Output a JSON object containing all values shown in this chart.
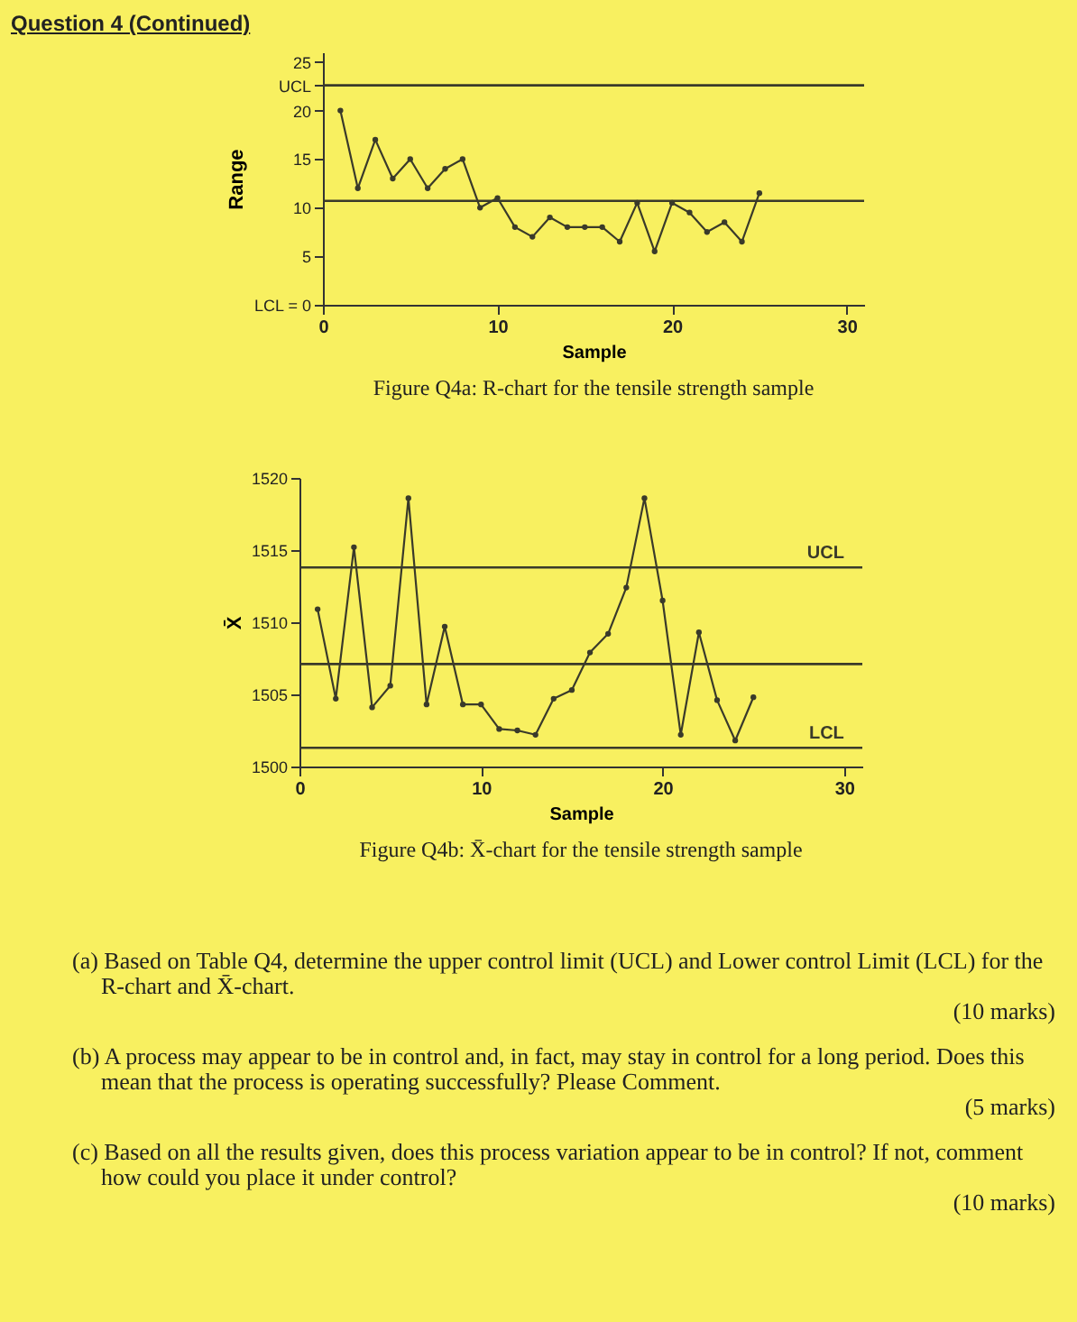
{
  "chart_data": [
    {
      "type": "other",
      "title": "Question 4 (Continued)"
    },
    {
      "type": "line",
      "title": "Figure Q4a: R-chart for the tensile strength sample",
      "xlabel": "Sample",
      "ylabel": "Range",
      "x": [
        1,
        2,
        3,
        4,
        5,
        6,
        7,
        8,
        9,
        10,
        11,
        12,
        13,
        14,
        15,
        16,
        17,
        18,
        19,
        20,
        21,
        22,
        23,
        24,
        25
      ],
      "series": [
        {
          "color": "#3a3a2a",
          "values": [
            20,
            12,
            17,
            13,
            15,
            12,
            14,
            15,
            10,
            11,
            8,
            7,
            9,
            8,
            8,
            8,
            6.5,
            10.5,
            5.5,
            10.5,
            9.5,
            7.5,
            8.5,
            6.5,
            11.5
          ]
        }
      ],
      "xlim": [
        0,
        31
      ],
      "xticks": [
        0,
        10,
        20,
        30
      ],
      "ylim": [
        0,
        26
      ],
      "yticks": [
        {
          "value": 0,
          "label": "LCL = 0"
        },
        5,
        10,
        15,
        20,
        {
          "value": 22.6,
          "label": "UCL"
        },
        25
      ],
      "ref_lines": [
        {
          "axis": "y",
          "value": 22.6,
          "color": "#3a3a2a"
        },
        {
          "axis": "y",
          "value": 10.7,
          "color": "#3a3a2a"
        }
      ],
      "grid": false,
      "marker": "circle",
      "line_style": "solid"
    },
    {
      "type": "line",
      "title": "Figure Q4b: X̄-chart for the tensile strength sample",
      "xlabel": "Sample",
      "ylabel": "X̄",
      "x": [
        1,
        2,
        3,
        4,
        5,
        6,
        7,
        8,
        9,
        10,
        11,
        12,
        13,
        14,
        15,
        16,
        17,
        18,
        19,
        20,
        21,
        22,
        23,
        24,
        25
      ],
      "series": [
        {
          "color": "#3a3a2a",
          "values": [
            1510.9,
            1504.7,
            1515.2,
            1504.1,
            1505.6,
            1518.6,
            1504.3,
            1509.7,
            1504.3,
            1504.3,
            1502.6,
            1502.5,
            1502.2,
            1504.7,
            1505.3,
            1507.9,
            1509.2,
            1512.4,
            1518.6,
            1511.5,
            1502.2,
            1509.3,
            1504.6,
            1501.8,
            1504.8
          ]
        }
      ],
      "xlim": [
        0,
        31
      ],
      "xticks": [
        0,
        10,
        20,
        30
      ],
      "ylim": [
        1500,
        1520
      ],
      "yticks": [
        1500,
        1505,
        1510,
        1515,
        1520
      ],
      "ref_lines": [
        {
          "axis": "y",
          "value": 1513.8,
          "label": "UCL",
          "color": "#3a3a2a"
        },
        {
          "axis": "y",
          "value": 1507.1,
          "color": "#3a3a2a"
        },
        {
          "axis": "y",
          "value": 1501.3,
          "label": "LCL",
          "color": "#3a3a2a"
        }
      ],
      "grid": false,
      "marker": "circle",
      "line_style": "solid"
    },
    {
      "type": "other",
      "annotations": [
        "(a) Based on Table Q4, determine the upper control limit (UCL) and Lower control Limit (LCL) for the R-chart and X̄-chart.",
        "(10 marks)",
        "(b) A process may appear to be in control and, in fact, may stay in control for a long period. Does this mean that the process is operating successfully? Please Comment.",
        "(5 marks)",
        "(c) Based on all the results given, does this process variation appear to be in control? If not, comment how could you place it under control?",
        "(10 marks)"
      ]
    }
  ]
}
